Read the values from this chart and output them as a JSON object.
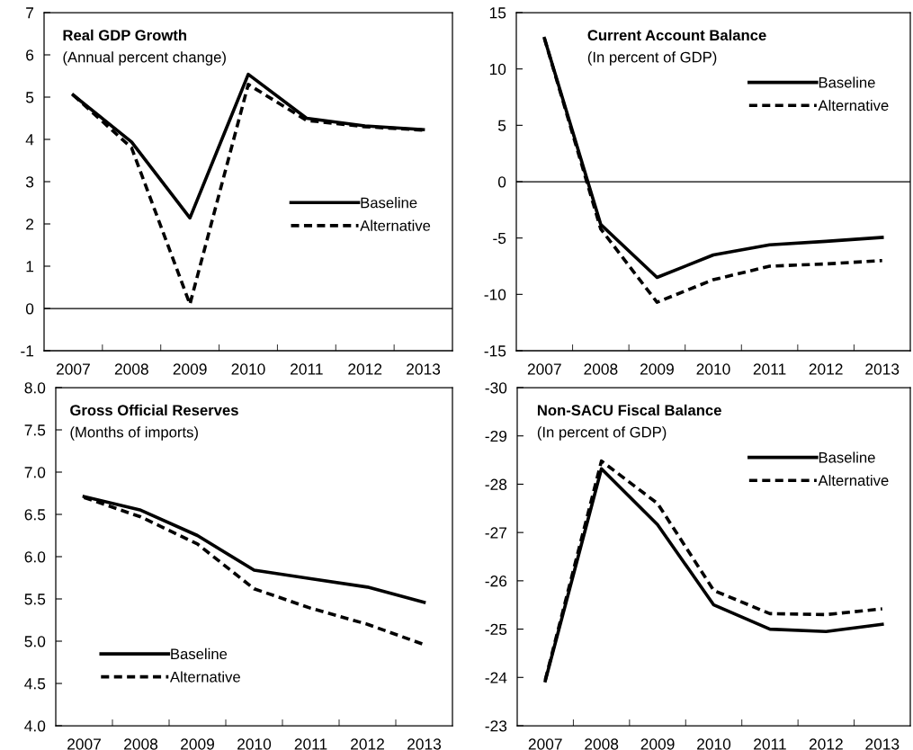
{
  "chart_data": [
    {
      "type": "line",
      "title": "Real GDP Growth",
      "subtitle": "(Annual percent change)",
      "categories": [
        "2007",
        "2008",
        "2009",
        "2010",
        "2011",
        "2012",
        "2013"
      ],
      "ylim": [
        -1,
        7
      ],
      "yticks": [
        -1,
        0,
        1,
        2,
        3,
        4,
        5,
        6,
        7
      ],
      "legend": "center right",
      "grid": false,
      "series": [
        {
          "name": "Baseline",
          "color": "#000000",
          "line_style": "solid",
          "values": [
            5.05,
            3.94,
            2.14,
            5.54,
            4.5,
            4.32,
            4.23
          ]
        },
        {
          "name": "Alternative",
          "color": "#000000",
          "line_style": "dashed",
          "values": [
            5.05,
            3.8,
            0.1,
            5.3,
            4.45,
            4.3,
            4.22
          ]
        }
      ],
      "ref_lines": [
        {
          "axis": "y",
          "value": 0,
          "color": "#000000"
        }
      ]
    },
    {
      "type": "line",
      "title": "Current Account Balance",
      "subtitle": "(In percent of GDP)",
      "categories": [
        "2007",
        "2008",
        "2009",
        "2010",
        "2011",
        "2012",
        "2013"
      ],
      "ylim": [
        -15,
        15
      ],
      "yticks": [
        -15,
        -10,
        -5,
        0,
        5,
        10,
        15
      ],
      "legend": "top right",
      "grid": false,
      "series": [
        {
          "name": "Baseline",
          "color": "#000000",
          "line_style": "solid",
          "values": [
            12.7,
            -3.8,
            -8.5,
            -6.5,
            -5.6,
            -5.3,
            -4.95
          ]
        },
        {
          "name": "Alternative",
          "color": "#000000",
          "line_style": "dashed",
          "values": [
            12.7,
            -4.2,
            -10.7,
            -8.7,
            -7.5,
            -7.3,
            -7.0
          ]
        }
      ],
      "ref_lines": [
        {
          "axis": "y",
          "value": 0,
          "color": "#000000"
        }
      ]
    },
    {
      "type": "line",
      "title": "Gross Official Reserves",
      "subtitle": "(Months of imports)",
      "categories": [
        "2007",
        "2008",
        "2009",
        "2010",
        "2011",
        "2012",
        "2013"
      ],
      "ylim": [
        4,
        8
      ],
      "yticks": [
        {
          "value": 4,
          "label": "4.0"
        },
        4.5,
        {
          "value": 5,
          "label": "5.0"
        },
        5.5,
        {
          "value": 6,
          "label": "6.0"
        },
        6.5,
        {
          "value": 7,
          "label": "7.0"
        },
        7.5,
        {
          "value": 8,
          "label": "8.0"
        }
      ],
      "legend": "bottom left",
      "grid": false,
      "series": [
        {
          "name": "Baseline",
          "color": "#000000",
          "line_style": "solid",
          "values": [
            6.71,
            6.55,
            6.25,
            5.84,
            5.74,
            5.64,
            5.46
          ]
        },
        {
          "name": "Alternative",
          "color": "#000000",
          "line_style": "dashed",
          "values": [
            6.7,
            6.47,
            6.15,
            5.62,
            5.39,
            5.2,
            4.96
          ]
        }
      ]
    },
    {
      "type": "line",
      "title": "Non-SACU Fiscal Balance",
      "subtitle": "(In percent of GDP)",
      "categories": [
        "2007",
        "2008",
        "2009",
        "2010",
        "2011",
        "2012",
        "2013"
      ],
      "ylim": [
        -23,
        -30
      ],
      "yticks": [
        -30,
        -29,
        -28,
        -27,
        -26,
        -25,
        -24,
        -23
      ],
      "legend": "top right",
      "grid": false,
      "series": [
        {
          "name": "Baseline",
          "color": "#000000",
          "line_style": "solid",
          "values": [
            -23.93,
            -28.32,
            -27.16,
            -25.5,
            -25.0,
            -24.95,
            -25.1
          ]
        },
        {
          "name": "Alternative",
          "color": "#000000",
          "line_style": "dashed",
          "values": [
            -23.95,
            -28.48,
            -27.6,
            -25.8,
            -25.32,
            -25.3,
            -25.42
          ]
        }
      ]
    }
  ]
}
